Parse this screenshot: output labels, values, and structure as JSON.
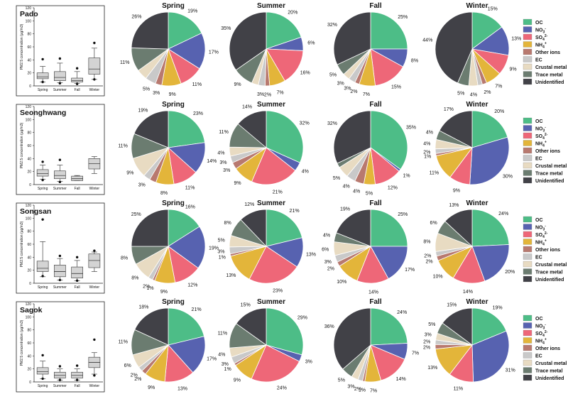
{
  "colors": {
    "OC": "#4dbd87",
    "NO3": "#5762b0",
    "SO4": "#ee6778",
    "NH4": "#e3b53a",
    "Other": "#b8796f",
    "EC": "#c9c9c9",
    "Crustal": "#e8dbc2",
    "Trace": "#6b7c70",
    "Unidentified": "#414147"
  },
  "legend_items": [
    {
      "key": "OC",
      "label": "OC",
      "sub": "",
      "sup": ""
    },
    {
      "key": "NO3",
      "label": "NO",
      "sub": "3",
      "sup": "-"
    },
    {
      "key": "SO4",
      "label": "SO",
      "sub": "4",
      "sup": "2-"
    },
    {
      "key": "NH4",
      "label": "NH",
      "sub": "4",
      "sup": "+"
    },
    {
      "key": "Other",
      "label": "Other ions",
      "sub": "",
      "sup": ""
    },
    {
      "key": "EC",
      "label": "EC",
      "sub": "",
      "sup": ""
    },
    {
      "key": "Crustal",
      "label": "Crustal metal",
      "sub": "",
      "sup": ""
    },
    {
      "key": "Trace",
      "label": "Trace metal",
      "sub": "",
      "sup": ""
    },
    {
      "key": "Unidentified",
      "label": "Unidentified",
      "sub": "",
      "sup": ""
    }
  ],
  "chart_data": {
    "type": "pie",
    "components": [
      "OC",
      "NO3",
      "SO4",
      "NH4",
      "Other",
      "EC",
      "Crustal",
      "Trace",
      "Unidentified"
    ],
    "seasons": [
      "Spring",
      "Summer",
      "Fall",
      "Winter"
    ],
    "box_ylabel": "PM2.5 concentration (μg/m3)",
    "box_ylim": [
      0,
      120
    ],
    "box_yticks": [
      0,
      20,
      40,
      60,
      80,
      100,
      120
    ],
    "box_categories": [
      "Spring",
      "Summer",
      "Fall",
      "Winter"
    ],
    "sites": [
      {
        "name": "Pado",
        "box": [
          {
            "min": 6,
            "q1": 11,
            "median": 14,
            "q3": 20,
            "max": 30,
            "outliers": [
              41,
              6
            ]
          },
          {
            "min": 5,
            "q1": 8,
            "median": 13,
            "q3": 22,
            "max": 35,
            "outliers": [
              42,
              4
            ]
          },
          {
            "min": 4,
            "q1": 6,
            "median": 8,
            "q3": 12,
            "max": 22,
            "outliers": [
              27,
              3
            ]
          },
          {
            "min": 10,
            "q1": 18,
            "median": 26,
            "q3": 43,
            "max": 58,
            "outliers": [
              66,
              10
            ]
          }
        ],
        "pies": [
          {
            "values": [
              19,
              17,
              11,
              9,
              3,
              5,
              5,
              11,
              26
            ],
            "labels": [
              "19%",
              "17%",
              "11%",
              "9%",
              "3%",
              "5%",
              "",
              "11%",
              "26%"
            ]
          },
          {
            "values": [
              20,
              6,
              16,
              7,
              2,
              3,
              3,
              9,
              35
            ],
            "labels": [
              "20%",
              "6%",
              "16%",
              "7%",
              "2%",
              "3%",
              "",
              "9%",
              "35%"
            ]
          },
          {
            "values": [
              25,
              8,
              15,
              7,
              2,
              3,
              3,
              5,
              32
            ],
            "labels": [
              "25%",
              "8%",
              "15%",
              "7%",
              "2%",
              "3%",
              "3%",
              "5%",
              "32%"
            ]
          },
          {
            "values": [
              15,
              13,
              9,
              7,
              2,
              2,
              4,
              5,
              44
            ],
            "labels": [
              "15%",
              "13%",
              "9%",
              "7%",
              "2%",
              "",
              "4%",
              "5%",
              "44%"
            ]
          }
        ]
      },
      {
        "name": "Seonghwang",
        "box": [
          {
            "min": 8,
            "q1": 13,
            "median": 17,
            "q3": 23,
            "max": 30,
            "outliers": [
              35,
              7
            ]
          },
          {
            "min": 5,
            "q1": 9,
            "median": 14,
            "q3": 21,
            "max": 30,
            "outliers": [
              38,
              4
            ]
          },
          {
            "min": 6,
            "q1": 6,
            "median": 9,
            "q3": 13,
            "max": 14,
            "outliers": []
          },
          {
            "min": 17,
            "q1": 24,
            "median": 32,
            "q3": 40,
            "max": 43,
            "outliers": []
          }
        ],
        "pies": [
          {
            "values": [
              23,
              14,
              11,
              8,
              3,
              3,
              9,
              11,
              19
            ],
            "labels": [
              "23%",
              "14%",
              "11%",
              "8%",
              "",
              "3%",
              "9%",
              "11%",
              "19%"
            ]
          },
          {
            "values": [
              32,
              4,
              21,
              9,
              3,
              3,
              4,
              11,
              14
            ],
            "labels": [
              "32%",
              "4%",
              "21%",
              "9%",
              "3%",
              "3%",
              "4%",
              "11%",
              "14%"
            ]
          },
          {
            "values": [
              35,
              1,
              12,
              5,
              4,
              4,
              5,
              2,
              32
            ],
            "labels": [
              "35%",
              "1%",
              "12%",
              "5%",
              "4%",
              "4%",
              "5%",
              "",
              "32%"
            ]
          },
          {
            "values": [
              20,
              30,
              9,
              11,
              1,
              2,
              4,
              4,
              17
            ],
            "labels": [
              "20%",
              "30%",
              "9%",
              "11%",
              "1%",
              "2%",
              "4%",
              "4%",
              "17%"
            ]
          }
        ]
      },
      {
        "name": "Songsan",
        "box": [
          {
            "min": 10,
            "q1": 18,
            "median": 23,
            "q3": 34,
            "max": 64,
            "outliers": [
              98,
              11
            ]
          },
          {
            "min": 5,
            "q1": 10,
            "median": 18,
            "q3": 28,
            "max": 38,
            "outliers": [
              42,
              5
            ]
          },
          {
            "min": 4,
            "q1": 8,
            "median": 15,
            "q3": 25,
            "max": 35,
            "outliers": [
              40,
              4
            ]
          },
          {
            "min": 18,
            "q1": 24,
            "median": 35,
            "q3": 45,
            "max": 48,
            "outliers": [
              50
            ]
          }
        ],
        "pies": [
          {
            "values": [
              16,
              19,
              12,
              9,
              1,
              2,
              8,
              8,
              25
            ],
            "labels": [
              "16%",
              "19%",
              "12%",
              "9%",
              "1%",
              "2%",
              "8%",
              "8%",
              "25%"
            ]
          },
          {
            "values": [
              21,
              13,
              23,
              13,
              1,
              3,
              5,
              8,
              12
            ],
            "labels": [
              "21%",
              "13%",
              "23%",
              "13%",
              "1%",
              "3%",
              "5%",
              "8%",
              "12%"
            ]
          },
          {
            "values": [
              25,
              17,
              14,
              10,
              2,
              3,
              6,
              4,
              19
            ],
            "labels": [
              "25%",
              "17%",
              "14%",
              "10%",
              "2%",
              "3%",
              "6%",
              "4%",
              "19%"
            ]
          },
          {
            "values": [
              24,
              20,
              14,
              10,
              2,
              2,
              8,
              6,
              13
            ],
            "labels": [
              "24%",
              "20%",
              "14%",
              "10%",
              "2%",
              "2%",
              "8%",
              "6%",
              "13%"
            ]
          }
        ]
      },
      {
        "name": "Sagok",
        "box": [
          {
            "min": 5,
            "q1": 12,
            "median": 16,
            "q3": 22,
            "max": 32,
            "outliers": [
              41,
              5
            ]
          },
          {
            "min": 3,
            "q1": 6,
            "median": 10,
            "q3": 15,
            "max": 20,
            "outliers": [
              24,
              3
            ]
          },
          {
            "min": 3,
            "q1": 6,
            "median": 10,
            "q3": 15,
            "max": 20,
            "outliers": [
              25,
              3
            ]
          },
          {
            "min": 12,
            "q1": 22,
            "median": 30,
            "q3": 38,
            "max": 45,
            "outliers": [
              65,
              10
            ]
          }
        ],
        "pies": [
          {
            "values": [
              21,
              17,
              13,
              9,
              2,
              2,
              6,
              11,
              18
            ],
            "labels": [
              "21%",
              "17%",
              "13%",
              "9%",
              "2%",
              "2%",
              "6%",
              "11%",
              "18%"
            ]
          },
          {
            "values": [
              29,
              3,
              24,
              9,
              1,
              3,
              4,
              11,
              15
            ],
            "labels": [
              "29%",
              "3%",
              "24%",
              "9%",
              "1%",
              "3%",
              "4%",
              "11%",
              "15%"
            ]
          },
          {
            "values": [
              24,
              7,
              14,
              7,
              1,
              2,
              3,
              5,
              36
            ],
            "labels": [
              "24%",
              "7%",
              "14%",
              "7%",
              "1%",
              "2%",
              "3%",
              "5%",
              "36%"
            ]
          },
          {
            "values": [
              19,
              31,
              11,
              13,
              2,
              2,
              3,
              5,
              15
            ],
            "labels": [
              "19%",
              "31%",
              "11%",
              "13%",
              "2%",
              "2%",
              "3%",
              "5%",
              "15%"
            ]
          }
        ]
      }
    ]
  }
}
